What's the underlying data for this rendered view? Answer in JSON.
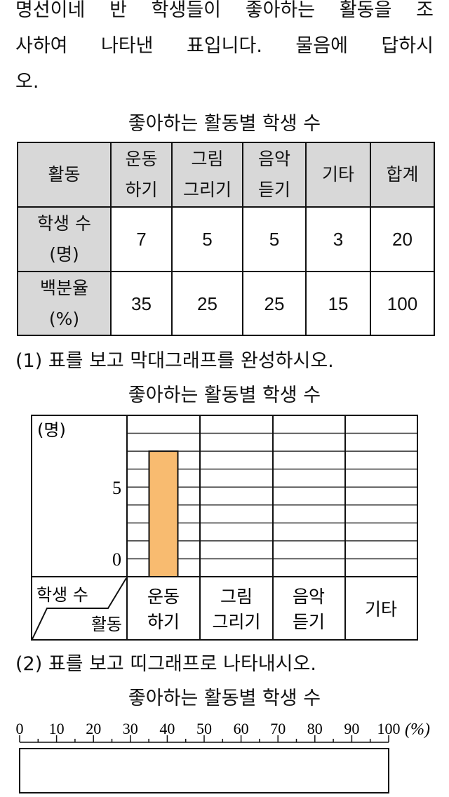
{
  "intro": {
    "line1": [
      "명선이네",
      "반",
      "학생들이",
      "좋아하는",
      "활동을",
      "조"
    ],
    "line2": [
      "사하여",
      "나타낸",
      "표입니다.",
      "물음에",
      "답하시"
    ],
    "line3": "오."
  },
  "table": {
    "title": "좋아하는 활동별 학생 수",
    "header": [
      "활동",
      "운동\n하기",
      "그림\n그리기",
      "음악\n듣기",
      "기타",
      "합계"
    ],
    "header_lines": [
      [
        "활동"
      ],
      [
        "운동",
        "하기"
      ],
      [
        "그림",
        "그리기"
      ],
      [
        "음악",
        "듣기"
      ],
      [
        "기타"
      ],
      [
        "합계"
      ]
    ],
    "rows": [
      {
        "label": [
          "학생 수",
          "(명)"
        ],
        "values": [
          "7",
          "5",
          "5",
          "3",
          "20"
        ]
      },
      {
        "label": [
          "백분율",
          "(%)"
        ],
        "values": [
          "35",
          "25",
          "25",
          "15",
          "100"
        ]
      }
    ]
  },
  "q1": {
    "question": "(1) 표를 보고 막대그래프를 완성하시오.",
    "title": "좋아하는 활동별 학생 수"
  },
  "chart_data": {
    "type": "bar",
    "title": "좋아하는 활동별 학생 수",
    "ylabel": "(명)",
    "corner_top": "학생 수",
    "corner_bottom": "활동",
    "categories": [
      [
        "운동",
        "하기"
      ],
      [
        "그림",
        "그리기"
      ],
      [
        "음악",
        "듣기"
      ],
      [
        "기타"
      ]
    ],
    "values": [
      7,
      null,
      null,
      null
    ],
    "ylim": [
      0,
      9
    ],
    "yticks": [
      "0",
      "5"
    ],
    "grid": true,
    "bar_color": "#f8bb70"
  },
  "q2": {
    "question": "(2) 표를 보고 띠그래프로 나타내시오.",
    "title": "좋아하는 활동별 학생 수",
    "scale_labels": [
      "0",
      "10",
      "20",
      "30",
      "40",
      "50",
      "60",
      "70",
      "80",
      "90",
      "100"
    ],
    "unit": "(%)"
  }
}
